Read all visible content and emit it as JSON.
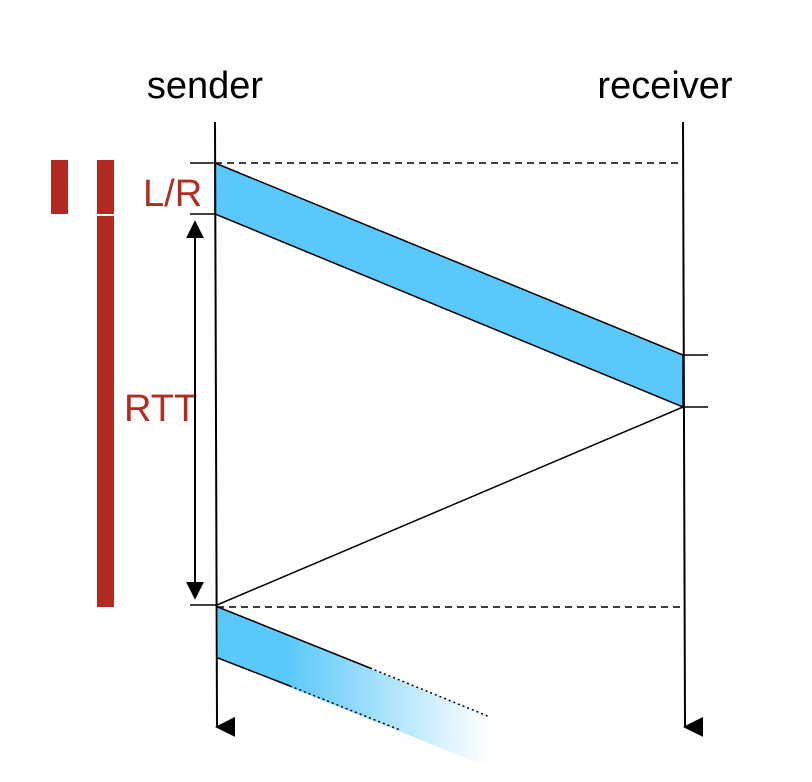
{
  "labels": {
    "sender": "sender",
    "receiver": "receiver",
    "transmission_time": "L/R",
    "round_trip_time": "RTT"
  },
  "colors": {
    "packet_fill": "#5ac8fa",
    "accent_red": "#b22a22",
    "line": "#000000"
  }
}
